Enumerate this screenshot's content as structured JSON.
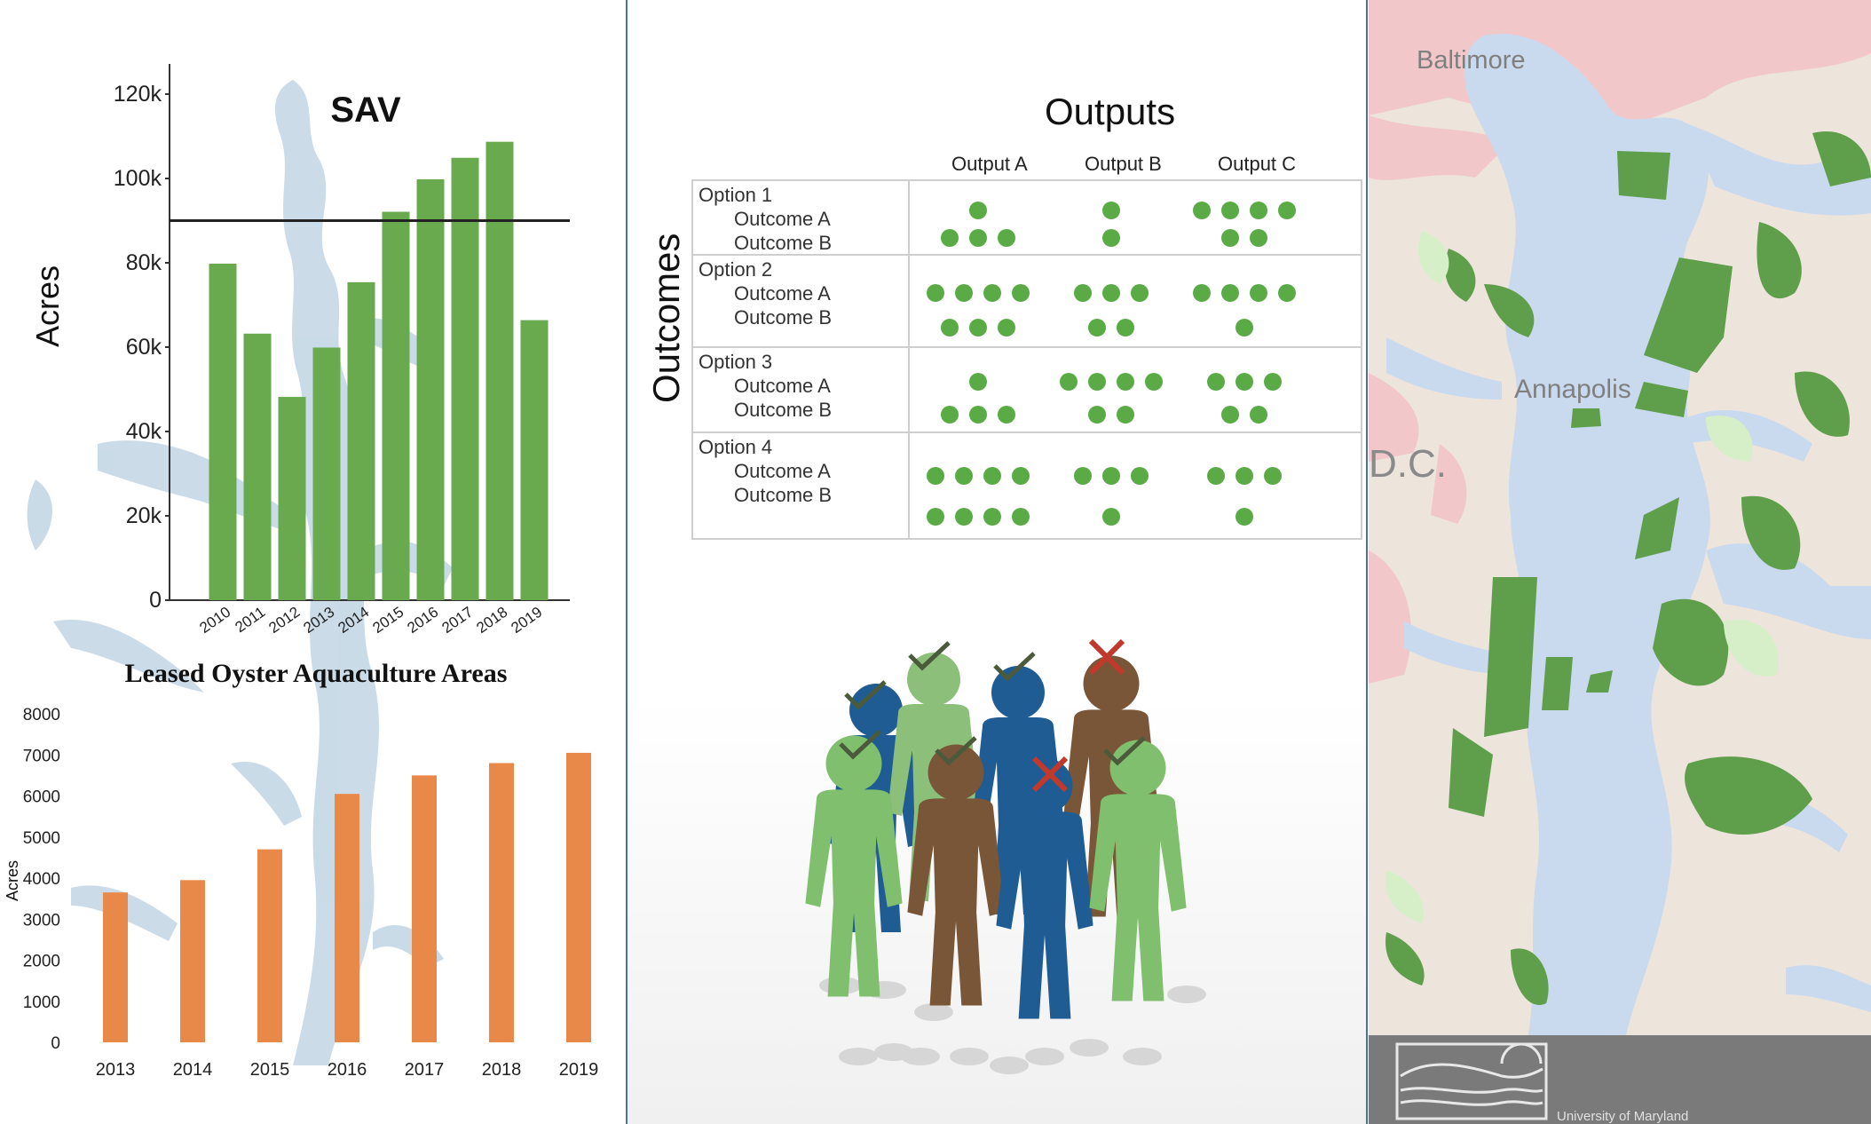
{
  "sav_chart": {
    "title": "SAV",
    "ylabel": "Acres",
    "yticks": [
      "0",
      "20k",
      "40k",
      "60k",
      "80k",
      "100k",
      "120k"
    ]
  },
  "oyster_chart": {
    "title": "Leased Oyster Aquaculture Areas",
    "ylabel": "Acres",
    "yticks": [
      "0",
      "1000",
      "2000",
      "3000",
      "4000",
      "5000",
      "6000",
      "7000",
      "8000"
    ]
  },
  "chart_data": [
    {
      "type": "bar",
      "title": "SAV",
      "ylabel": "Acres",
      "categories": [
        "2010",
        "2011",
        "2012",
        "2013",
        "2014",
        "2015",
        "2016",
        "2017",
        "2018",
        "2019"
      ],
      "values": [
        79800,
        63200,
        48200,
        59900,
        75400,
        92100,
        99800,
        104900,
        108700,
        66400
      ],
      "ylim": [
        0,
        120000
      ],
      "reference_line": 90000,
      "color": "#6aaa4f"
    },
    {
      "type": "bar",
      "title": "Leased Oyster Aquaculture Areas",
      "ylabel": "Acres",
      "categories": [
        "2013",
        "2014",
        "2015",
        "2016",
        "2017",
        "2018",
        "2019"
      ],
      "values": [
        3650,
        3950,
        4700,
        6050,
        6500,
        6800,
        7050
      ],
      "ylim": [
        0,
        8000
      ],
      "color": "#e8894a"
    }
  ],
  "outputs": {
    "title": "Outputs",
    "side_label": "Outcomes",
    "columns": [
      "Output A",
      "Output B",
      "Output C"
    ],
    "rows": [
      {
        "option": "Option 1",
        "outcome_a": "Outcome A",
        "outcome_b": "Outcome B",
        "a": [
          1,
          1,
          4
        ],
        "b": [
          3,
          1,
          2
        ]
      },
      {
        "option": "Option 2",
        "outcome_a": "Outcome A",
        "outcome_b": "Outcome B",
        "a": [
          4,
          3,
          4
        ],
        "b": [
          3,
          2,
          1
        ]
      },
      {
        "option": "Option 3",
        "outcome_a": "Outcome A",
        "outcome_b": "Outcome B",
        "a": [
          1,
          4,
          3
        ],
        "b": [
          3,
          2,
          2
        ]
      },
      {
        "option": "Option 4",
        "outcome_a": "Outcome A",
        "outcome_b": "Outcome B",
        "a": [
          4,
          3,
          3
        ],
        "b": [
          4,
          1,
          1
        ]
      }
    ],
    "dot_color": "#5aab46"
  },
  "people": {
    "check_color": "#4a5a3a",
    "cross_color": "#c0392b"
  },
  "map": {
    "labels": {
      "baltimore": "Baltimore",
      "annapolis": "Annapolis",
      "dc": "D.C."
    },
    "footer_text": "University of Maryland"
  }
}
